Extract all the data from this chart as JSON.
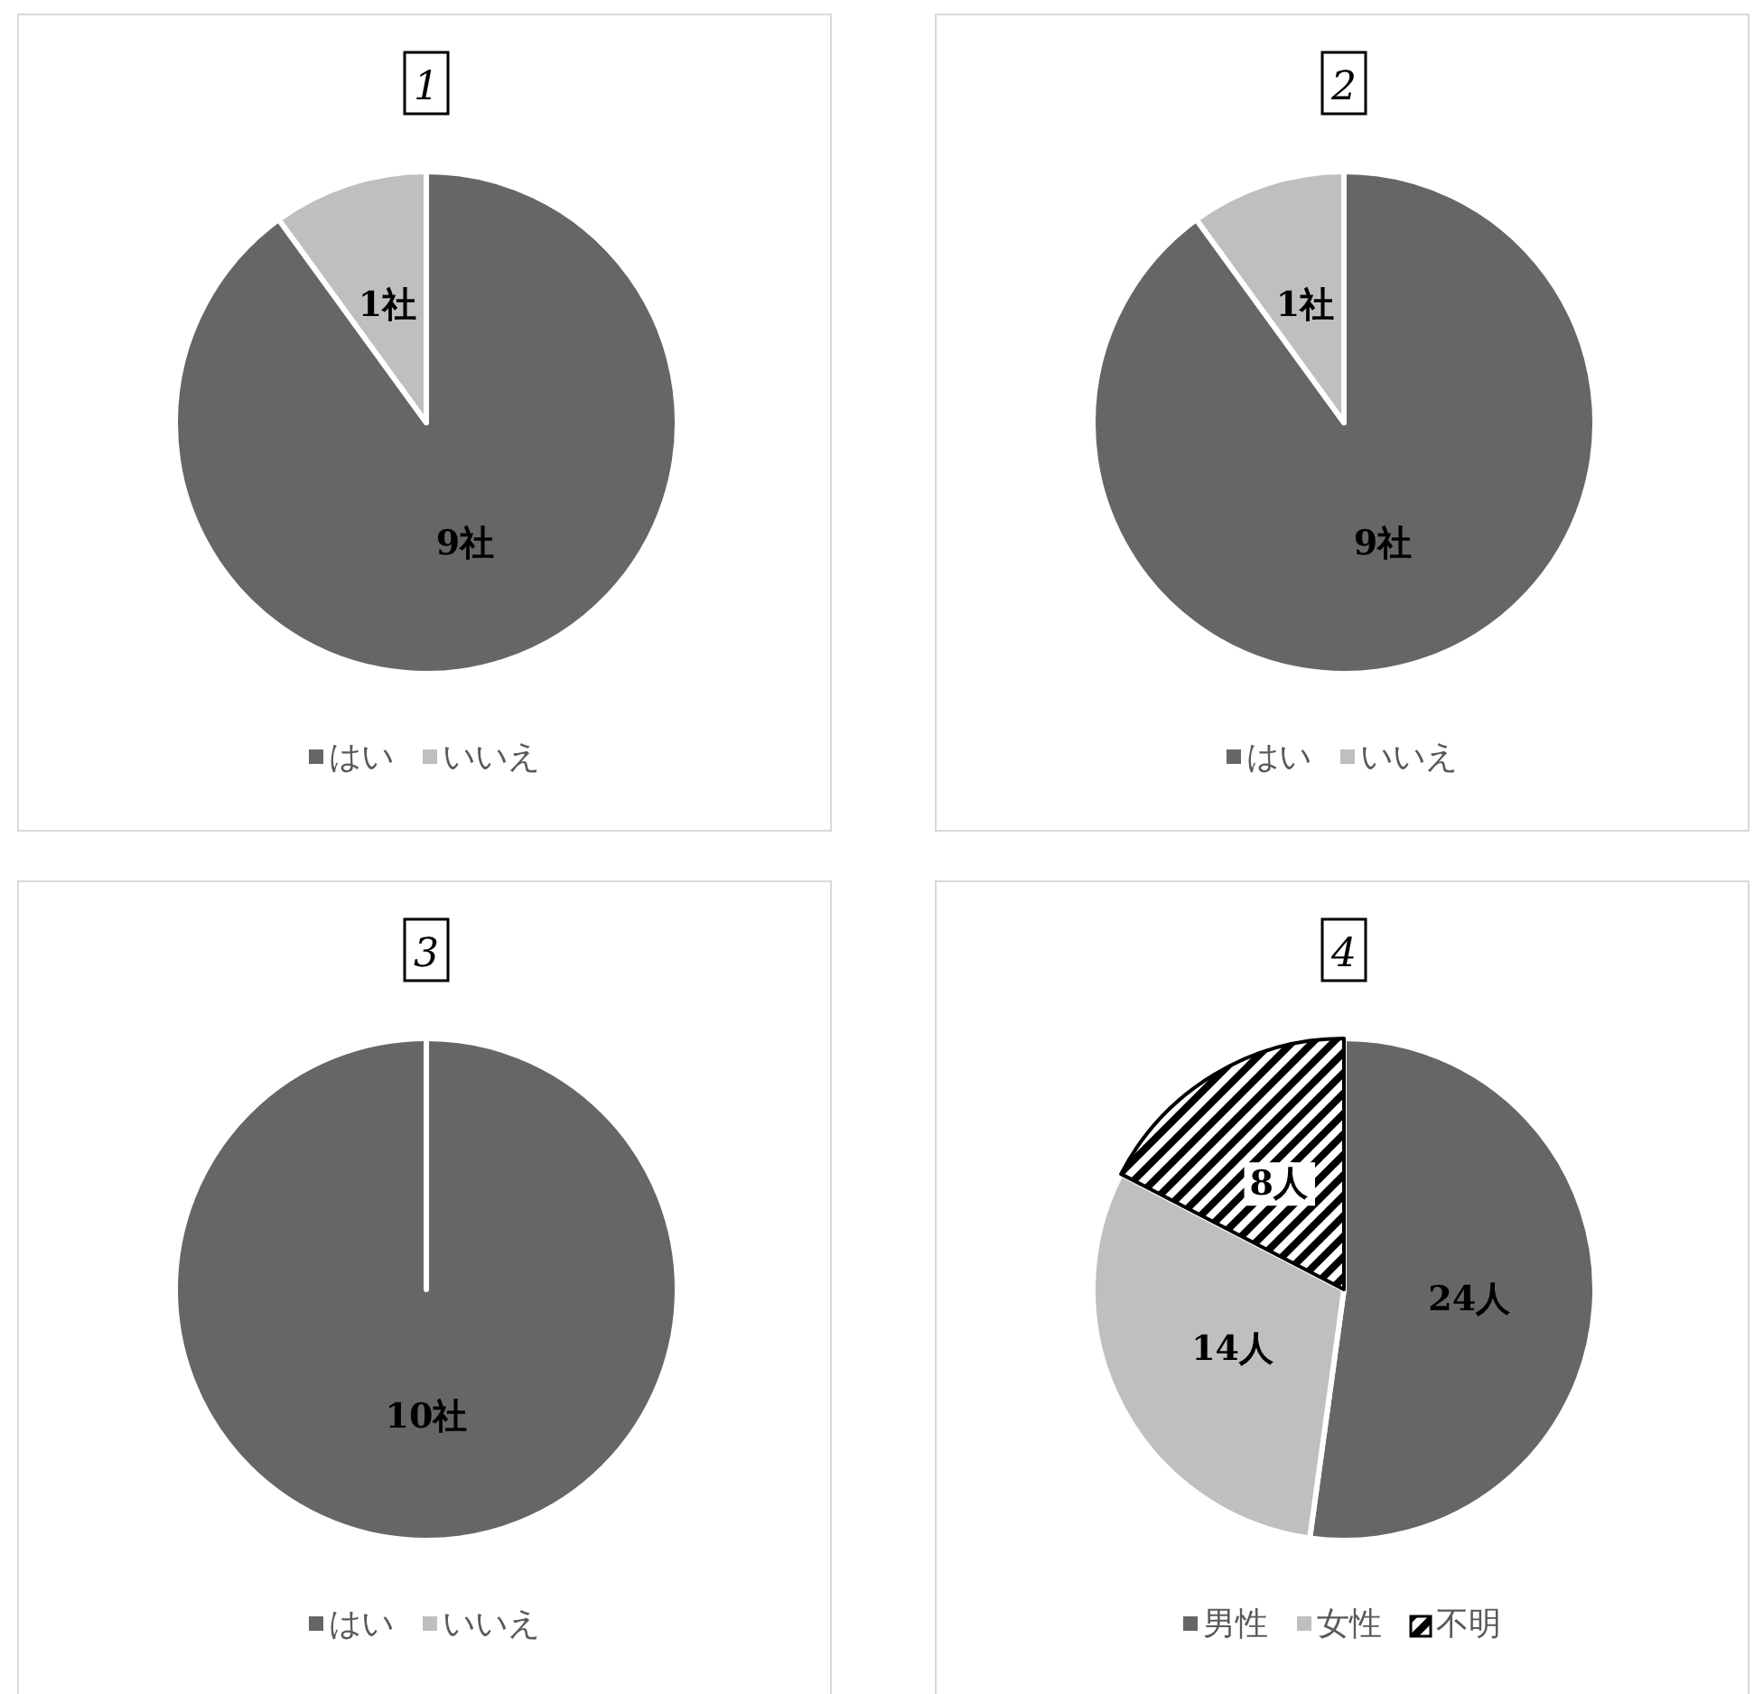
{
  "chart_data": [
    {
      "type": "pie",
      "title": "1",
      "categories": [
        "はい",
        "いいえ"
      ],
      "values": [
        9,
        1
      ],
      "colors": [
        "#666666",
        "#bfbfbf"
      ],
      "value_labels": [
        "9社",
        "1社"
      ],
      "legend": "bottom"
    },
    {
      "type": "pie",
      "title": "2",
      "categories": [
        "はい",
        "いいえ"
      ],
      "values": [
        9,
        1
      ],
      "colors": [
        "#666666",
        "#bfbfbf"
      ],
      "value_labels": [
        "9社",
        "1社"
      ],
      "legend": "bottom"
    },
    {
      "type": "pie",
      "title": "3",
      "categories": [
        "はい",
        "いいえ"
      ],
      "values": [
        10,
        0
      ],
      "colors": [
        "#666666",
        "#bfbfbf"
      ],
      "value_labels": [
        "10社",
        null
      ],
      "legend": "bottom"
    },
    {
      "type": "pie",
      "title": "4",
      "categories": [
        "男性",
        "女性",
        "不明"
      ],
      "values": [
        24,
        14,
        8
      ],
      "colors": [
        "#666666",
        "#bfbfbf",
        "#000000"
      ],
      "value_labels": [
        "24人",
        "14人",
        "8人"
      ],
      "legend": "bottom"
    }
  ]
}
